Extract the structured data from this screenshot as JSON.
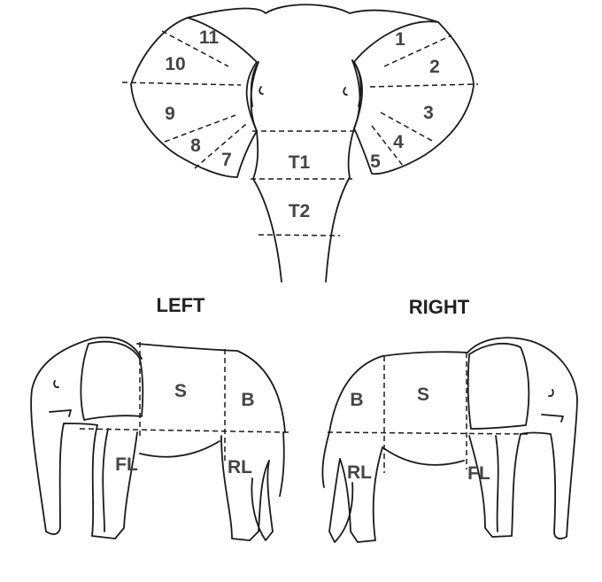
{
  "front_view": {
    "ear_regions": {
      "left_ear": [
        "11",
        "10",
        "9",
        "8",
        "7"
      ],
      "right_ear": [
        "1",
        "2",
        "3",
        "4",
        "5"
      ]
    },
    "trunk_regions": [
      "T1",
      "T2"
    ]
  },
  "side_views": {
    "left": {
      "title": "LEFT",
      "regions": {
        "shoulder": "S",
        "back": "B",
        "foreleg": "FL",
        "rear_leg": "RL"
      }
    },
    "right": {
      "title": "RIGHT",
      "regions": {
        "shoulder": "S",
        "back": "B",
        "foreleg": "FL",
        "rear_leg": "RL"
      }
    }
  }
}
